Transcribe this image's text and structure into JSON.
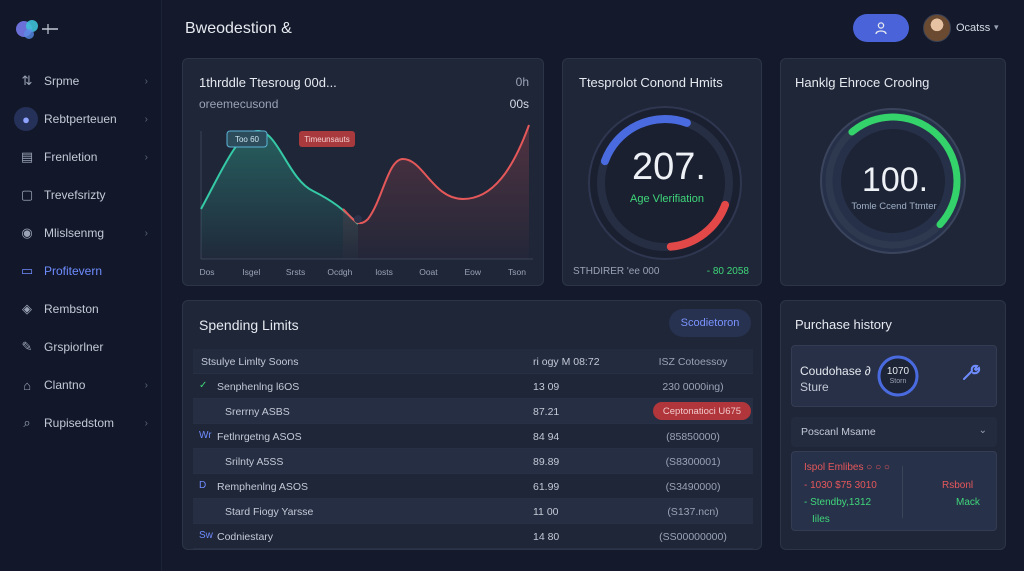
{
  "header": {
    "title": "Bweodestion &",
    "user_name": "Ocatss",
    "user_caret": "▾"
  },
  "sidebar": {
    "items": [
      {
        "label": "Srpme",
        "icon": "wallet-icon",
        "glyph": "⇅",
        "chevron": true
      },
      {
        "label": "Rebtperteuen",
        "icon": "user-circle-icon",
        "glyph": "●",
        "chevron": true,
        "circle": true
      },
      {
        "label": "Frenletion",
        "icon": "calendar-icon",
        "glyph": "▤",
        "chevron": true
      },
      {
        "label": "Trevefsrizty",
        "icon": "chat-icon",
        "glyph": "▢",
        "chevron": false
      },
      {
        "label": "Mlislsenmg",
        "icon": "shield-icon",
        "glyph": "◉",
        "chevron": true
      },
      {
        "label": "Profitevern",
        "icon": "card-icon",
        "glyph": "▭",
        "chevron": false,
        "active": true
      },
      {
        "label": "Rembston",
        "icon": "eye-icon",
        "glyph": "◈",
        "chevron": false
      },
      {
        "label": "Grspiorlner",
        "icon": "pen-icon",
        "glyph": "✎",
        "chevron": false
      },
      {
        "label": "Clantno",
        "icon": "home-icon",
        "glyph": "⌂",
        "chevron": true
      },
      {
        "label": "Rupisedstom",
        "icon": "search-icon",
        "glyph": "⌕",
        "chevron": true
      }
    ]
  },
  "line_card": {
    "title": "1thrddle Ttesroug 00d...",
    "right_label": "0h",
    "subtitle": "oreemecusond",
    "value": "00s",
    "callout_teal": "Too 60",
    "callout_red": "Timeunsauts",
    "x_labels": [
      "Dos",
      "Isgel",
      "Srsts",
      "Ocdgh",
      "losts",
      "Ooat",
      "Eow",
      "Tson"
    ],
    "teal_color": "#35c9a6",
    "red_color": "#e5585a"
  },
  "gauge1": {
    "title": "Ttesprolot Conond Hmits",
    "value": "207.",
    "caption": "Age Vlerifiation",
    "footer_left": "STHDIRER 'ee 000",
    "footer_right": "- 80 2058",
    "level": 0.72,
    "blue": "#4a6be0",
    "red": "#e24848"
  },
  "gauge2": {
    "title": "Hanklg Ehroce Croolng",
    "value": "100.",
    "caption": "Tomle Ccend Ttmter",
    "level": 0.8,
    "green": "#34d26a"
  },
  "spending": {
    "title": "Spending Limits",
    "button": "Scodietoron",
    "header": {
      "c1": "Stsulye Limlty Soons",
      "c2": "ri ogy M 08:72",
      "c3": "ISZ Cotoessoy"
    },
    "rows": [
      {
        "mark": "✓",
        "mark_color": "green",
        "c1": "Senphenlng l6OS",
        "indent": false,
        "c2": "13 09",
        "c3": "230 0000ing)",
        "alt": false
      },
      {
        "mark": "",
        "c1": "Srerrny ASBS",
        "indent": true,
        "c2": "87.21",
        "c3": "Ceptonatioci U675",
        "alt": true,
        "badge": true
      },
      {
        "mark": "Wr",
        "c1": "Fetlnrgetng ASOS",
        "indent": false,
        "c2": "84 94",
        "c3": "(85850000)",
        "alt": false
      },
      {
        "mark": "",
        "c1": "Srilnty A5SS",
        "indent": true,
        "c2": "89.89",
        "c3": "(S8300001)",
        "alt": true
      },
      {
        "mark": "D",
        "c1": "Remphenlng ASOS",
        "indent": false,
        "c2": "61.99",
        "c3": "(S3490000)",
        "alt": false
      },
      {
        "mark": "",
        "c1": "Stard Fiogy Yarsse",
        "indent": true,
        "c2": "11 00",
        "c3": "(S137.ncn)",
        "alt": true
      },
      {
        "mark": "Sw",
        "c1": "Codniestary",
        "indent": false,
        "c2": "14 80",
        "c3": "(SS00000000)",
        "alt": false
      }
    ]
  },
  "purchase": {
    "title": "Purchase history",
    "box_line1": "Coudohase ∂",
    "box_line2": "Sture",
    "ring_value": "1070",
    "ring_label": "Storn",
    "select_label": "Poscanl Msame",
    "select_chev": "⌄",
    "list_head": "Ispol Emlibes ○ ○ ○",
    "list_row1": "- 1030 $75 3010",
    "list_row2": "- Stendby,1312",
    "list_row3": "Iiles",
    "right_row1": "Rsbonl",
    "right_row2": "Mack"
  }
}
